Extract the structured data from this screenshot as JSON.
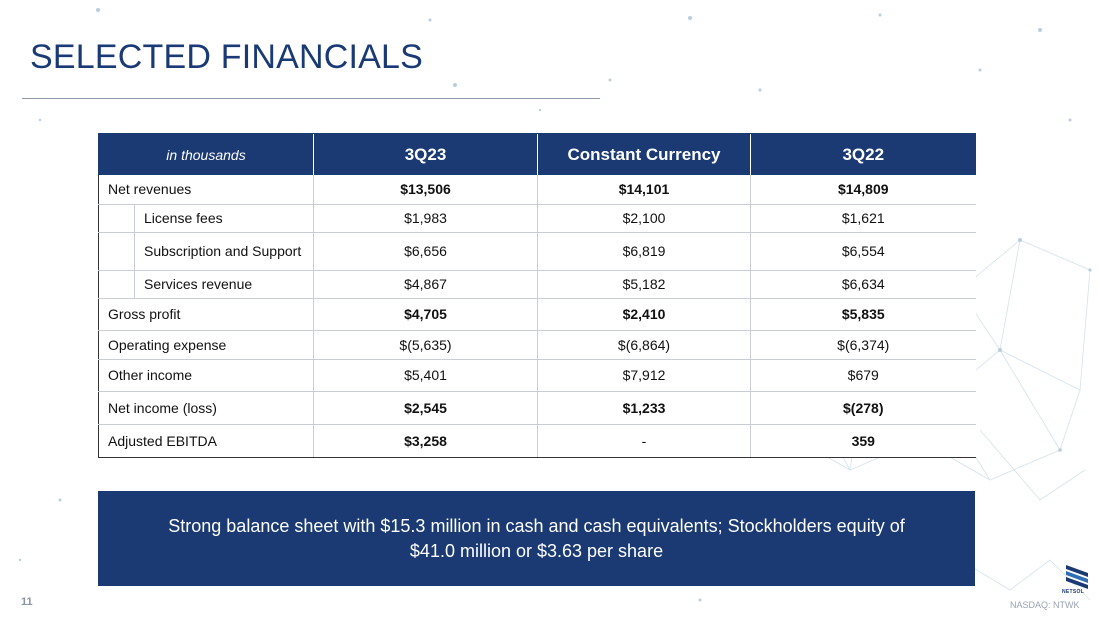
{
  "title": "SELECTED FINANCIALS",
  "page_number": "11",
  "ticker": "NASDAQ: NTWK",
  "logo_text": "NETSOL",
  "colors": {
    "navy": "#1b3a73",
    "title": "#1a3a75"
  },
  "table": {
    "unit_header": "in thousands",
    "columns": [
      "3Q23",
      "Constant Currency",
      "3Q22"
    ],
    "rows": {
      "net_revenues": {
        "label": "Net revenues",
        "values": [
          "$13,506",
          "$14,101",
          "$14,809"
        ]
      },
      "license_fees": {
        "label": "License fees",
        "values": [
          "$1,983",
          "$2,100",
          "$1,621"
        ]
      },
      "subscription": {
        "label": "Subscription and Support",
        "values": [
          "$6,656",
          "$6,819",
          "$6,554"
        ]
      },
      "services": {
        "label": "Services revenue",
        "values": [
          "$4,867",
          "$5,182",
          "$6,634"
        ]
      },
      "gross_profit": {
        "label": "Gross profit",
        "values": [
          "$4,705",
          "$2,410",
          "$5,835"
        ]
      },
      "operating_expense": {
        "label": "Operating expense",
        "values": [
          "$(5,635)",
          "$(6,864)",
          "$(6,374)"
        ]
      },
      "other_income": {
        "label": "Other income",
        "values": [
          "$5,401",
          "$7,912",
          "$679"
        ]
      },
      "net_income": {
        "label": "Net income (loss)",
        "values": [
          "$2,545",
          "$1,233",
          "$(278)"
        ]
      },
      "adjusted_ebitda": {
        "label": "Adjusted EBITDA",
        "values": [
          "$3,258",
          "-",
          "359"
        ]
      }
    }
  },
  "callout": "Strong balance sheet with $15.3 million in cash and cash equivalents; Stockholders equity of $41.0 million or $3.63 per share"
}
